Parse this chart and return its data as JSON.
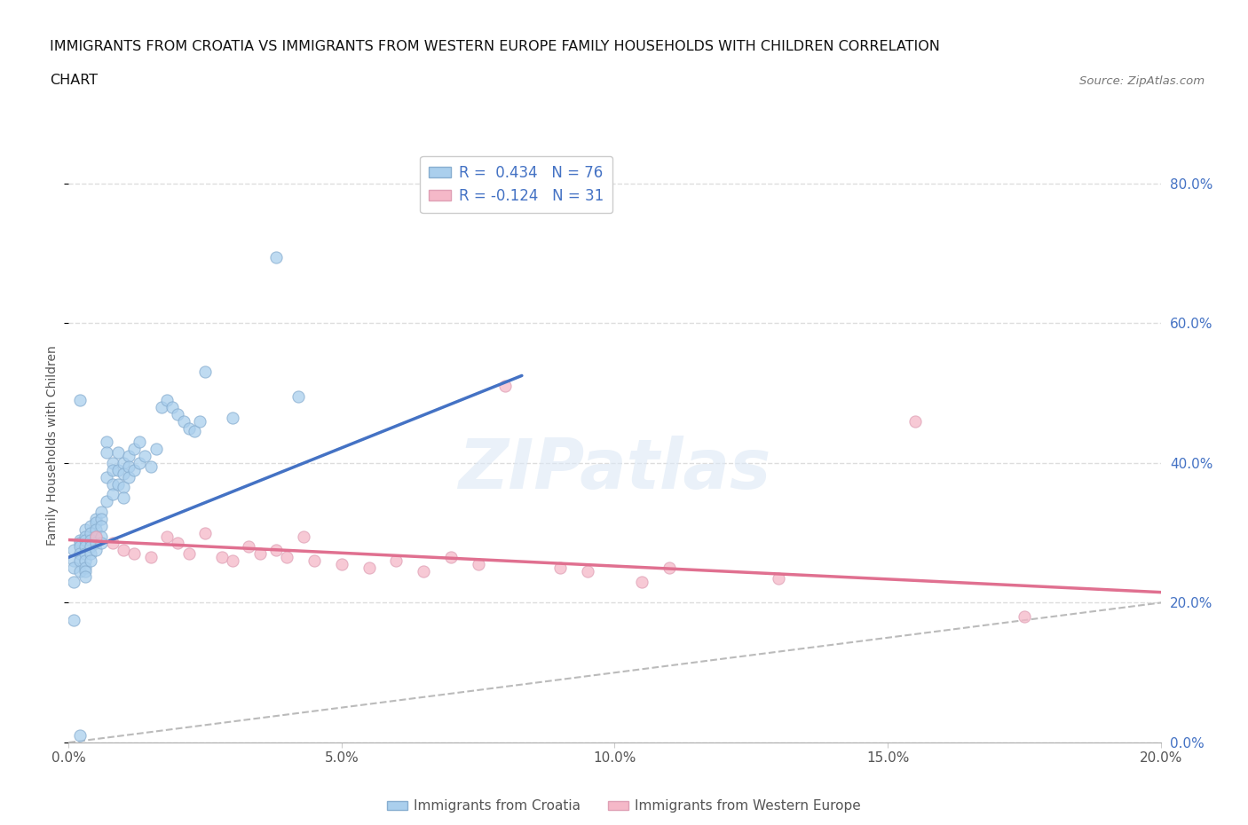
{
  "title_line1": "IMMIGRANTS FROM CROATIA VS IMMIGRANTS FROM WESTERN EUROPE FAMILY HOUSEHOLDS WITH CHILDREN CORRELATION",
  "title_line2": "CHART",
  "source": "Source: ZipAtlas.com",
  "ylabel": "Family Households with Children",
  "xlim": [
    0.0,
    0.2
  ],
  "ylim": [
    0.0,
    0.85
  ],
  "xticks": [
    0.0,
    0.05,
    0.1,
    0.15,
    0.2
  ],
  "yticks": [
    0.0,
    0.2,
    0.4,
    0.6,
    0.8
  ],
  "ytick_labels_right": [
    "0.0%",
    "20.0%",
    "40.0%",
    "60.0%",
    "80.0%"
  ],
  "xtick_labels": [
    "0.0%",
    "5.0%",
    "10.0%",
    "15.0%",
    "20.0%"
  ],
  "legend_blue_label": "R =  0.434   N = 76",
  "legend_pink_label": "R = -0.124   N = 31",
  "watermark": "ZIPatlas",
  "blue_scatter_x": [
    0.001,
    0.001,
    0.001,
    0.001,
    0.001,
    0.002,
    0.002,
    0.002,
    0.002,
    0.002,
    0.002,
    0.002,
    0.003,
    0.003,
    0.003,
    0.003,
    0.003,
    0.003,
    0.003,
    0.003,
    0.003,
    0.004,
    0.004,
    0.004,
    0.004,
    0.004,
    0.004,
    0.005,
    0.005,
    0.005,
    0.005,
    0.005,
    0.005,
    0.006,
    0.006,
    0.006,
    0.006,
    0.006,
    0.007,
    0.007,
    0.007,
    0.007,
    0.008,
    0.008,
    0.008,
    0.008,
    0.009,
    0.009,
    0.009,
    0.01,
    0.01,
    0.01,
    0.01,
    0.011,
    0.011,
    0.011,
    0.012,
    0.012,
    0.013,
    0.013,
    0.014,
    0.015,
    0.016,
    0.017,
    0.018,
    0.019,
    0.02,
    0.021,
    0.022,
    0.023,
    0.024,
    0.025,
    0.03,
    0.038,
    0.042,
    0.002
  ],
  "blue_scatter_y": [
    0.275,
    0.26,
    0.25,
    0.23,
    0.175,
    0.29,
    0.285,
    0.28,
    0.27,
    0.26,
    0.245,
    0.01,
    0.305,
    0.295,
    0.29,
    0.28,
    0.27,
    0.26,
    0.25,
    0.245,
    0.238,
    0.31,
    0.3,
    0.29,
    0.28,
    0.27,
    0.26,
    0.32,
    0.315,
    0.305,
    0.295,
    0.285,
    0.275,
    0.33,
    0.32,
    0.31,
    0.295,
    0.285,
    0.345,
    0.43,
    0.415,
    0.38,
    0.4,
    0.39,
    0.37,
    0.355,
    0.415,
    0.39,
    0.37,
    0.4,
    0.385,
    0.365,
    0.35,
    0.41,
    0.395,
    0.38,
    0.42,
    0.39,
    0.43,
    0.4,
    0.41,
    0.395,
    0.42,
    0.48,
    0.49,
    0.48,
    0.47,
    0.46,
    0.45,
    0.445,
    0.46,
    0.53,
    0.465,
    0.695,
    0.495,
    0.49
  ],
  "pink_scatter_x": [
    0.005,
    0.008,
    0.01,
    0.012,
    0.015,
    0.018,
    0.02,
    0.022,
    0.025,
    0.028,
    0.03,
    0.033,
    0.035,
    0.038,
    0.04,
    0.043,
    0.045,
    0.05,
    0.055,
    0.06,
    0.065,
    0.07,
    0.075,
    0.08,
    0.09,
    0.095,
    0.105,
    0.11,
    0.13,
    0.155,
    0.175
  ],
  "pink_scatter_y": [
    0.295,
    0.285,
    0.275,
    0.27,
    0.265,
    0.295,
    0.285,
    0.27,
    0.3,
    0.265,
    0.26,
    0.28,
    0.27,
    0.275,
    0.265,
    0.295,
    0.26,
    0.255,
    0.25,
    0.26,
    0.245,
    0.265,
    0.255,
    0.51,
    0.25,
    0.245,
    0.23,
    0.25,
    0.235,
    0.46,
    0.18
  ],
  "blue_trend_x": [
    0.0,
    0.083
  ],
  "blue_trend_y": [
    0.265,
    0.525
  ],
  "pink_trend_x": [
    0.0,
    0.2
  ],
  "pink_trend_y": [
    0.29,
    0.215
  ],
  "grid_color": "#dddddd",
  "grid_style": "--",
  "background_color": "#ffffff"
}
